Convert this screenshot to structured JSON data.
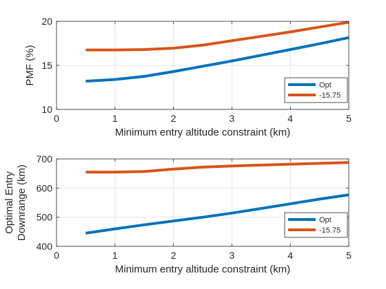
{
  "chart_data": [
    {
      "type": "line",
      "xlabel": "Minimum entry altitude constraint (km)",
      "ylabel": "PMF (%)",
      "xlim": [
        0,
        5
      ],
      "ylim": [
        10,
        20
      ],
      "xticks": [
        "0",
        "1",
        "2",
        "3",
        "4",
        "5"
      ],
      "yticks": [
        "10",
        "15",
        "20"
      ],
      "grid": true,
      "legend_position": "bottom-right",
      "x": [
        0.5,
        1,
        1.5,
        2,
        2.5,
        3,
        3.5,
        4,
        4.5,
        5
      ],
      "series": [
        {
          "name": "Opt",
          "color": "#0072BD",
          "values": [
            13.2,
            13.4,
            13.75,
            14.3,
            14.9,
            15.5,
            16.15,
            16.8,
            17.45,
            18.15
          ]
        },
        {
          "name": "-15.75",
          "color": "#D95319",
          "values": [
            16.75,
            16.75,
            16.8,
            16.95,
            17.3,
            17.8,
            18.3,
            18.8,
            19.35,
            19.9
          ]
        }
      ]
    },
    {
      "type": "line",
      "xlabel": "Minimum entry altitude constraint (km)",
      "ylabel": "Optimal Entry Downrange (km)",
      "ylabel_lines": [
        "Optimal Entry",
        "Downrange (km)"
      ],
      "xlim": [
        0,
        5
      ],
      "ylim": [
        400,
        700
      ],
      "xticks": [
        "0",
        "1",
        "2",
        "3",
        "4",
        "5"
      ],
      "yticks": [
        "400",
        "500",
        "600",
        "700"
      ],
      "grid": true,
      "legend_position": "bottom-right",
      "x": [
        0.5,
        1,
        1.5,
        2,
        2.5,
        3,
        3.5,
        4,
        4.5,
        5
      ],
      "series": [
        {
          "name": "Opt",
          "color": "#0072BD",
          "values": [
            445,
            460,
            474,
            487,
            500,
            514,
            530,
            546,
            562,
            577
          ]
        },
        {
          "name": "-15.75",
          "color": "#D95319",
          "values": [
            655,
            655,
            657,
            665,
            672,
            676,
            679,
            682,
            685,
            688
          ]
        }
      ]
    }
  ]
}
